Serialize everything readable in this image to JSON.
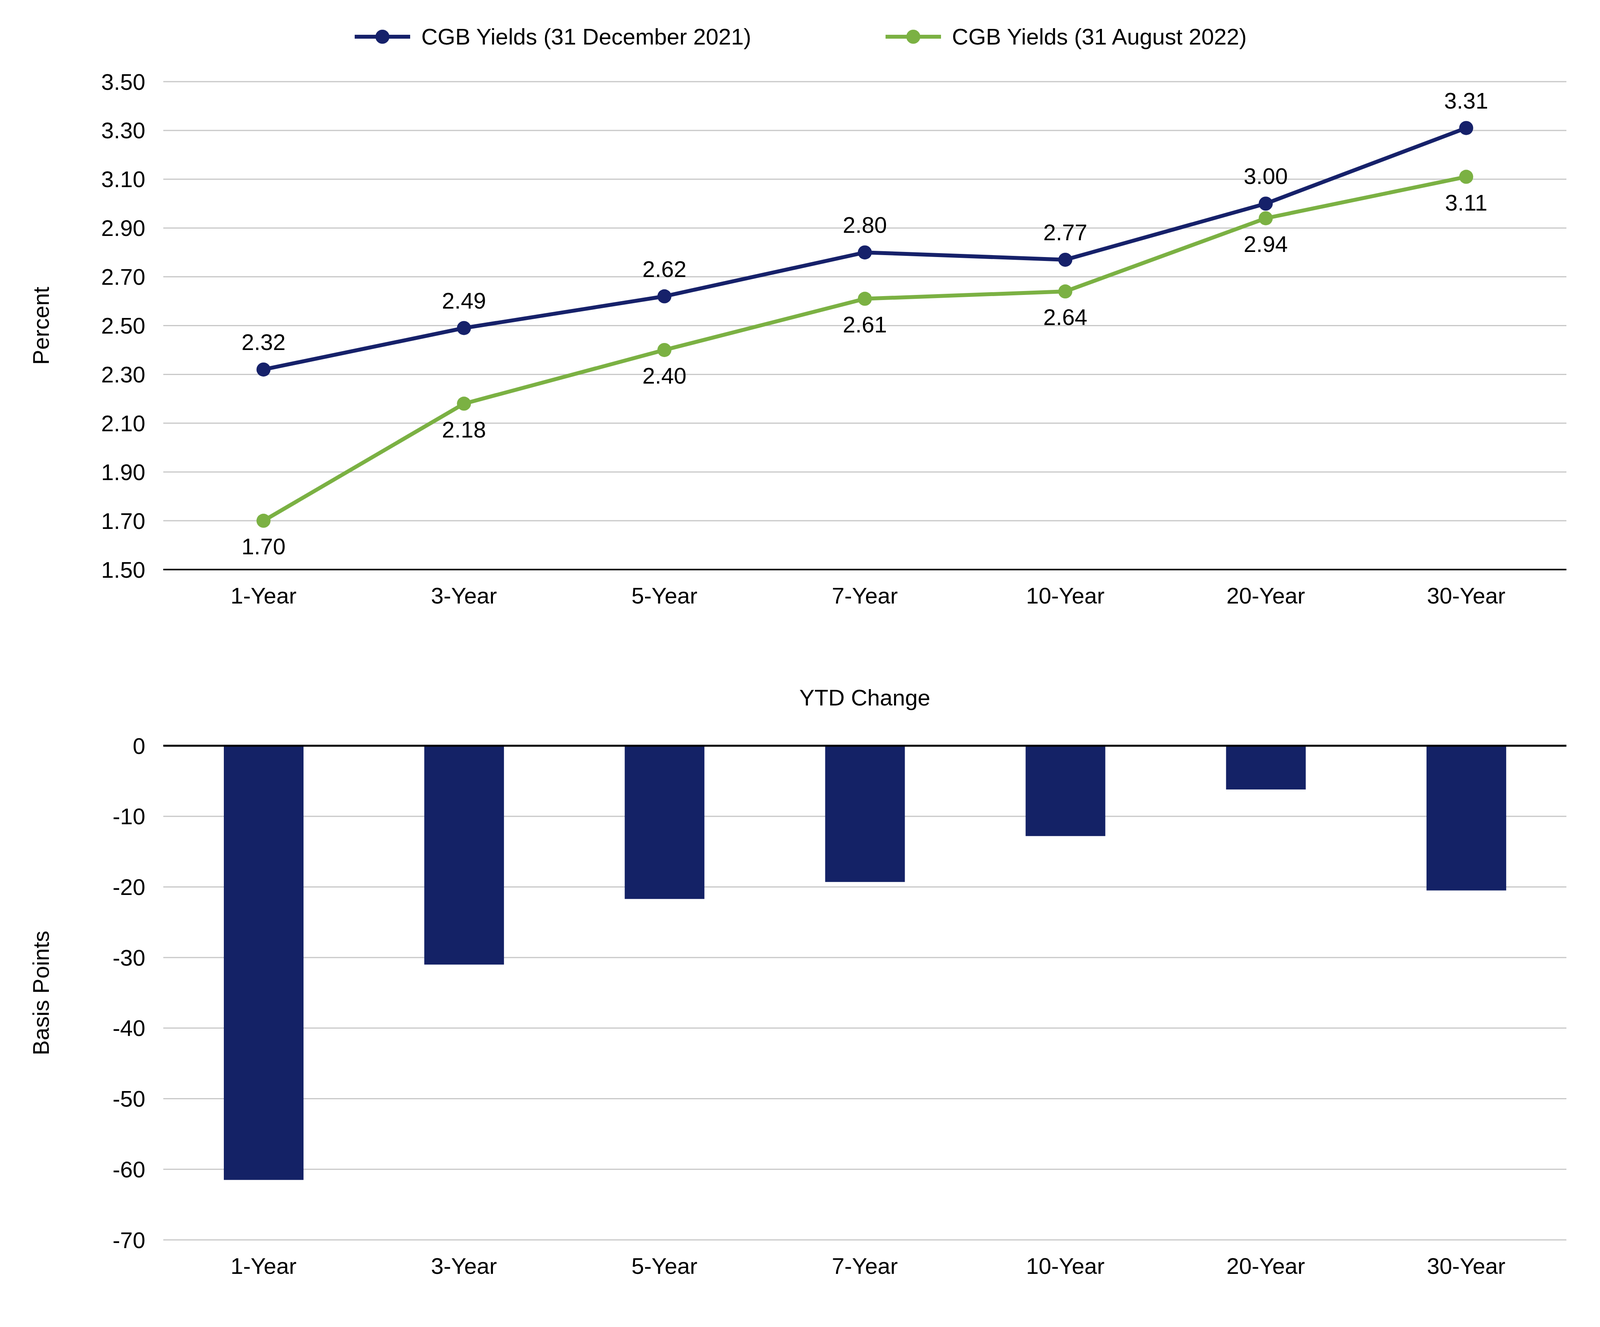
{
  "chart_data": [
    {
      "type": "line",
      "categories": [
        "1-Year",
        "3-Year",
        "5-Year",
        "7-Year",
        "10-Year",
        "20-Year",
        "30-Year"
      ],
      "series": [
        {
          "name": "CGB Yields (31 December 2021)",
          "color": "#16216a",
          "marker": "circle",
          "values": [
            2.32,
            2.49,
            2.62,
            2.8,
            2.77,
            3.0,
            3.31
          ],
          "value_labels": [
            "2.32",
            "2.49",
            "2.62",
            "2.80",
            "2.77",
            "3.00",
            "3.31"
          ]
        },
        {
          "name": "CGB Yields (31 August 2022)",
          "color": "#7bb143",
          "marker": "circle",
          "values": [
            1.7,
            2.18,
            2.4,
            2.61,
            2.64,
            2.94,
            3.11
          ],
          "value_labels": [
            "1.70",
            "2.18",
            "2.40",
            "2.61",
            "2.64",
            "2.94",
            "3.11"
          ]
        }
      ],
      "y_label": "Percent",
      "ylim": [
        1.5,
        3.5
      ],
      "yticks": [
        {
          "value": 1.5,
          "label": "1.50"
        },
        {
          "value": 1.7,
          "label": "1.70"
        },
        {
          "value": 1.9,
          "label": "1.90"
        },
        {
          "value": 2.1,
          "label": "2.10"
        },
        {
          "value": 2.3,
          "label": "2.30"
        },
        {
          "value": 2.5,
          "label": "2.50"
        },
        {
          "value": 2.7,
          "label": "2.70"
        },
        {
          "value": 2.9,
          "label": "2.90"
        },
        {
          "value": 3.1,
          "label": "3.10"
        },
        {
          "value": 3.3,
          "label": "3.30"
        },
        {
          "value": 3.5,
          "label": "3.50"
        }
      ],
      "grid": true,
      "data_labels": true,
      "legend": "top"
    },
    {
      "type": "bar",
      "title": "YTD Change",
      "categories": [
        "1-Year",
        "3-Year",
        "5-Year",
        "7-Year",
        "10-Year",
        "20-Year",
        "30-Year"
      ],
      "values": [
        -61.5,
        -31,
        -21.7,
        -19.3,
        -12.8,
        -6.2,
        -20.5
      ],
      "color": "#142266",
      "y_label": "Basis Points",
      "ylim": [
        -70,
        0
      ],
      "yticks": [
        -70,
        -60,
        -50,
        -40,
        -30,
        -20,
        -10,
        0
      ],
      "grid": true
    }
  ]
}
